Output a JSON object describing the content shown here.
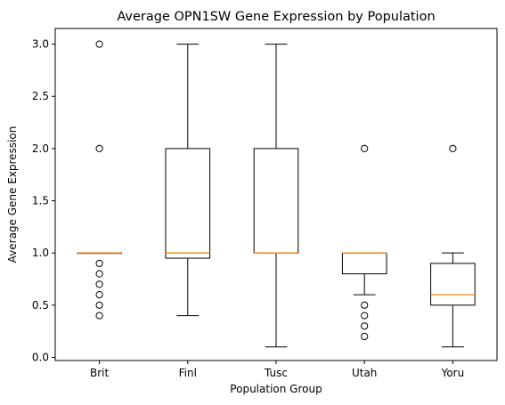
{
  "chart_data": {
    "type": "boxplot",
    "title": "Average OPN1SW Gene Expression by Population",
    "xlabel": "Population Group",
    "ylabel": "Average Gene Expression",
    "ylim": [
      -0.03,
      3.15
    ],
    "yticks": [
      "0.0",
      "0.5",
      "1.0",
      "1.5",
      "2.0",
      "2.5",
      "3.0"
    ],
    "grid": false,
    "legend": "none",
    "colors": {
      "box": "#000000",
      "median": "#ff7f0e",
      "outlier": "#000000"
    },
    "categories": [
      "Brit",
      "Finl",
      "Tusc",
      "Utah",
      "Yoru"
    ],
    "boxes": [
      {
        "name": "Brit",
        "whisker_low": 1.0,
        "q1": 1.0,
        "median": 1.0,
        "q3": 1.0,
        "whisker_high": 1.0,
        "outliers": [
          0.4,
          0.5,
          0.6,
          0.7,
          0.8,
          0.9,
          2.0,
          3.0
        ]
      },
      {
        "name": "Finl",
        "whisker_low": 0.4,
        "q1": 0.95,
        "median": 1.0,
        "q3": 2.0,
        "whisker_high": 3.0,
        "outliers": []
      },
      {
        "name": "Tusc",
        "whisker_low": 0.1,
        "q1": 1.0,
        "median": 1.0,
        "q3": 2.0,
        "whisker_high": 3.0,
        "outliers": []
      },
      {
        "name": "Utah",
        "whisker_low": 0.6,
        "q1": 0.8,
        "median": 1.0,
        "q3": 1.0,
        "whisker_high": 1.0,
        "outliers": [
          0.2,
          0.3,
          0.4,
          0.5,
          2.0
        ]
      },
      {
        "name": "Yoru",
        "whisker_low": 0.1,
        "q1": 0.5,
        "median": 0.6,
        "q3": 0.9,
        "whisker_high": 1.0,
        "outliers": [
          2.0
        ]
      }
    ]
  }
}
